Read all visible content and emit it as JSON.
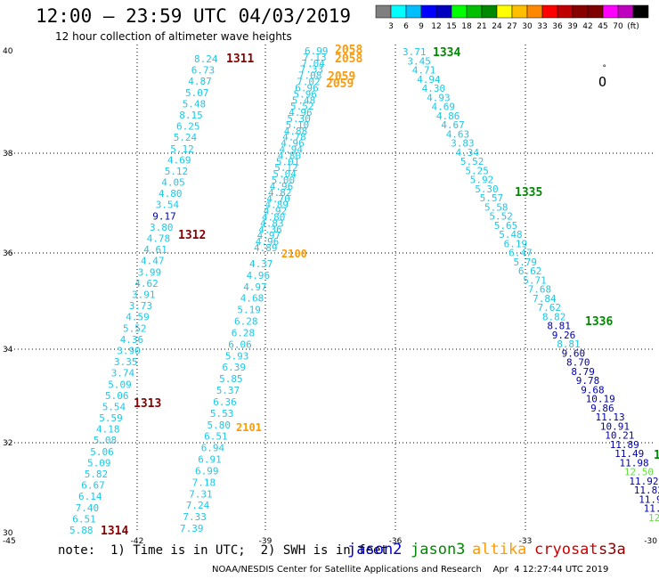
{
  "header": {
    "title": "12:00 — 23:59 UTC 04/03/2019",
    "subtitle": "12 hour collection of altimeter wave heights"
  },
  "colorbar": {
    "colors": [
      "#7f7f7f",
      "#00ffff",
      "#00bfff",
      "#0000ff",
      "#0000bf",
      "#00ff00",
      "#00bf00",
      "#008800",
      "#ffff00",
      "#ffbf00",
      "#ff8800",
      "#ff0000",
      "#bf0000",
      "#880000",
      "#7f0000",
      "#ff00ff",
      "#bf00bf",
      "#000000"
    ],
    "labels": [
      "3",
      "6",
      "9",
      "12",
      "15",
      "18",
      "21",
      "24",
      "27",
      "30",
      "33",
      "36",
      "39",
      "42",
      "45",
      "70",
      "(ft)"
    ]
  },
  "axes": {
    "lon_ticks": [
      "-45",
      "-42",
      "-39",
      "-36",
      "-33",
      "-30"
    ],
    "lat_ticks": [
      "40",
      "38",
      "36",
      "34",
      "32",
      "30"
    ]
  },
  "track_labels": [
    {
      "text": "1311",
      "color": "#880000"
    },
    {
      "text": "1312",
      "color": "#880000"
    },
    {
      "text": "1313",
      "color": "#880000"
    },
    {
      "text": "1314",
      "color": "#880000"
    },
    {
      "text": "2058",
      "color": "#ff9900"
    },
    {
      "text": "2058",
      "color": "#ff9900"
    },
    {
      "text": "2059",
      "color": "#ff9900"
    },
    {
      "text": "2059",
      "color": "#ff9900"
    },
    {
      "text": "2100",
      "color": "#ff9900"
    },
    {
      "text": "2101",
      "color": "#ff9900"
    },
    {
      "text": "1334",
      "color": "#008800"
    },
    {
      "text": "1335",
      "color": "#008800"
    },
    {
      "text": "1336",
      "color": "#008800"
    },
    {
      "text": "1",
      "color": "#008800"
    }
  ],
  "track_a": [
    "8.24",
    "6.73",
    "4.87",
    "5.07",
    "5.48",
    "8.15",
    "6.25",
    "5.24",
    "5.12",
    "4.69",
    "5.12",
    "4.05",
    "4.80",
    "3.54",
    "9.17",
    "3.80",
    "4.78",
    "4.61",
    "4.47",
    "3.99",
    "4.62",
    "3.91",
    "3.73",
    "4.59",
    "5.52",
    "4.36",
    "3.90",
    "3.35",
    "3.74",
    "5.09",
    "5.06",
    "5.54",
    "5.59",
    "4.18",
    "5.08",
    "5.06",
    "5.09",
    "5.82",
    "6.67",
    "6.14",
    "7.40",
    "6.51",
    "5.88"
  ],
  "track_a_colors": [
    "c",
    "c",
    "c",
    "c",
    "c",
    "c",
    "c",
    "c",
    "c",
    "c",
    "c",
    "c",
    "c",
    "c",
    "n",
    "c",
    "c",
    "c",
    "c",
    "c",
    "c",
    "c",
    "c",
    "c",
    "c",
    "c",
    "c",
    "c",
    "c",
    "c",
    "c",
    "c",
    "c",
    "c",
    "c",
    "c",
    "c",
    "c",
    "c",
    "c",
    "c",
    "c",
    "c"
  ],
  "track_b_top": [
    "6.99",
    "7.13",
    "7.04",
    "7.33",
    "7.08",
    "7.02",
    "6.96",
    "5.96",
    "5.48",
    "5.52",
    "4.96",
    "5.30",
    "5.10",
    "4.88",
    "4.78",
    "4.96",
    "4.94",
    "4.80",
    "5.01",
    "5.12",
    "5.04",
    "5.00",
    "4.96",
    "4.82",
    "4.70",
    "4.89",
    "4.92",
    "4.80",
    "4.83",
    "4.36",
    "4.97",
    "4.96",
    "4.89"
  ],
  "track_b": [
    "4.37",
    "4.96",
    "4.97",
    "4.68",
    "5.19",
    "6.28",
    "6.28",
    "6.06",
    "5.93",
    "6.39",
    "5.85",
    "5.37",
    "6.36",
    "5.53",
    "5.80",
    "6.51",
    "6.94",
    "6.91",
    "6.99",
    "7.18",
    "7.31",
    "7.24",
    "7.33",
    "7.39"
  ],
  "track_c": [
    "3.71",
    "3.45",
    "4.71",
    "4.94",
    "4.30",
    "4.93",
    "4.69",
    "4.86",
    "4.67",
    "4.63",
    "3.83",
    "4.34",
    "5.52",
    "5.25",
    "5.92",
    "5.30",
    "5.57",
    "5.58",
    "5.52",
    "5.65",
    "5.48",
    "6.19",
    "6.47",
    "5.79",
    "6.62",
    "5.71",
    "7.68",
    "7.84",
    "7.62",
    "8.82",
    "8.81",
    "9.26",
    "8.81",
    "9.60",
    "8.70",
    "8.79",
    "9.78",
    "9.68",
    "10.19",
    "9.86",
    "11.13",
    "10.91",
    "10.21",
    "11.89",
    "11.49",
    "11.98",
    "12.50",
    "11.92",
    "11.82",
    "11.9",
    "11.",
    "12"
  ],
  "track_c_colors": [
    "c",
    "c",
    "c",
    "c",
    "c",
    "c",
    "c",
    "c",
    "c",
    "c",
    "c",
    "c",
    "c",
    "c",
    "c",
    "c",
    "c",
    "c",
    "c",
    "c",
    "c",
    "c",
    "c",
    "c",
    "c",
    "c",
    "c",
    "c",
    "c",
    "c",
    "n",
    "n",
    "c",
    "n",
    "n",
    "n",
    "n",
    "n",
    "n",
    "n",
    "n",
    "n",
    "n",
    "n",
    "n",
    "n",
    "g",
    "n",
    "n",
    "n",
    "n",
    "g"
  ],
  "legend": {
    "note": "note:  1) Time is in UTC;  2) SWH is in feet",
    "satellites": [
      {
        "name": "jason2",
        "color": "#0000cc"
      },
      {
        "name": "jason3",
        "color": "#008800"
      },
      {
        "name": "altika",
        "color": "#ff9900"
      },
      {
        "name": "cryosat",
        "color": "#cc0000"
      },
      {
        "name": "s3a",
        "color": "#880000"
      }
    ],
    "credit": "NOAA/NESDIS Center for Satellite Applications and Research    Apr  4 12:27:44 UTC 2019"
  }
}
